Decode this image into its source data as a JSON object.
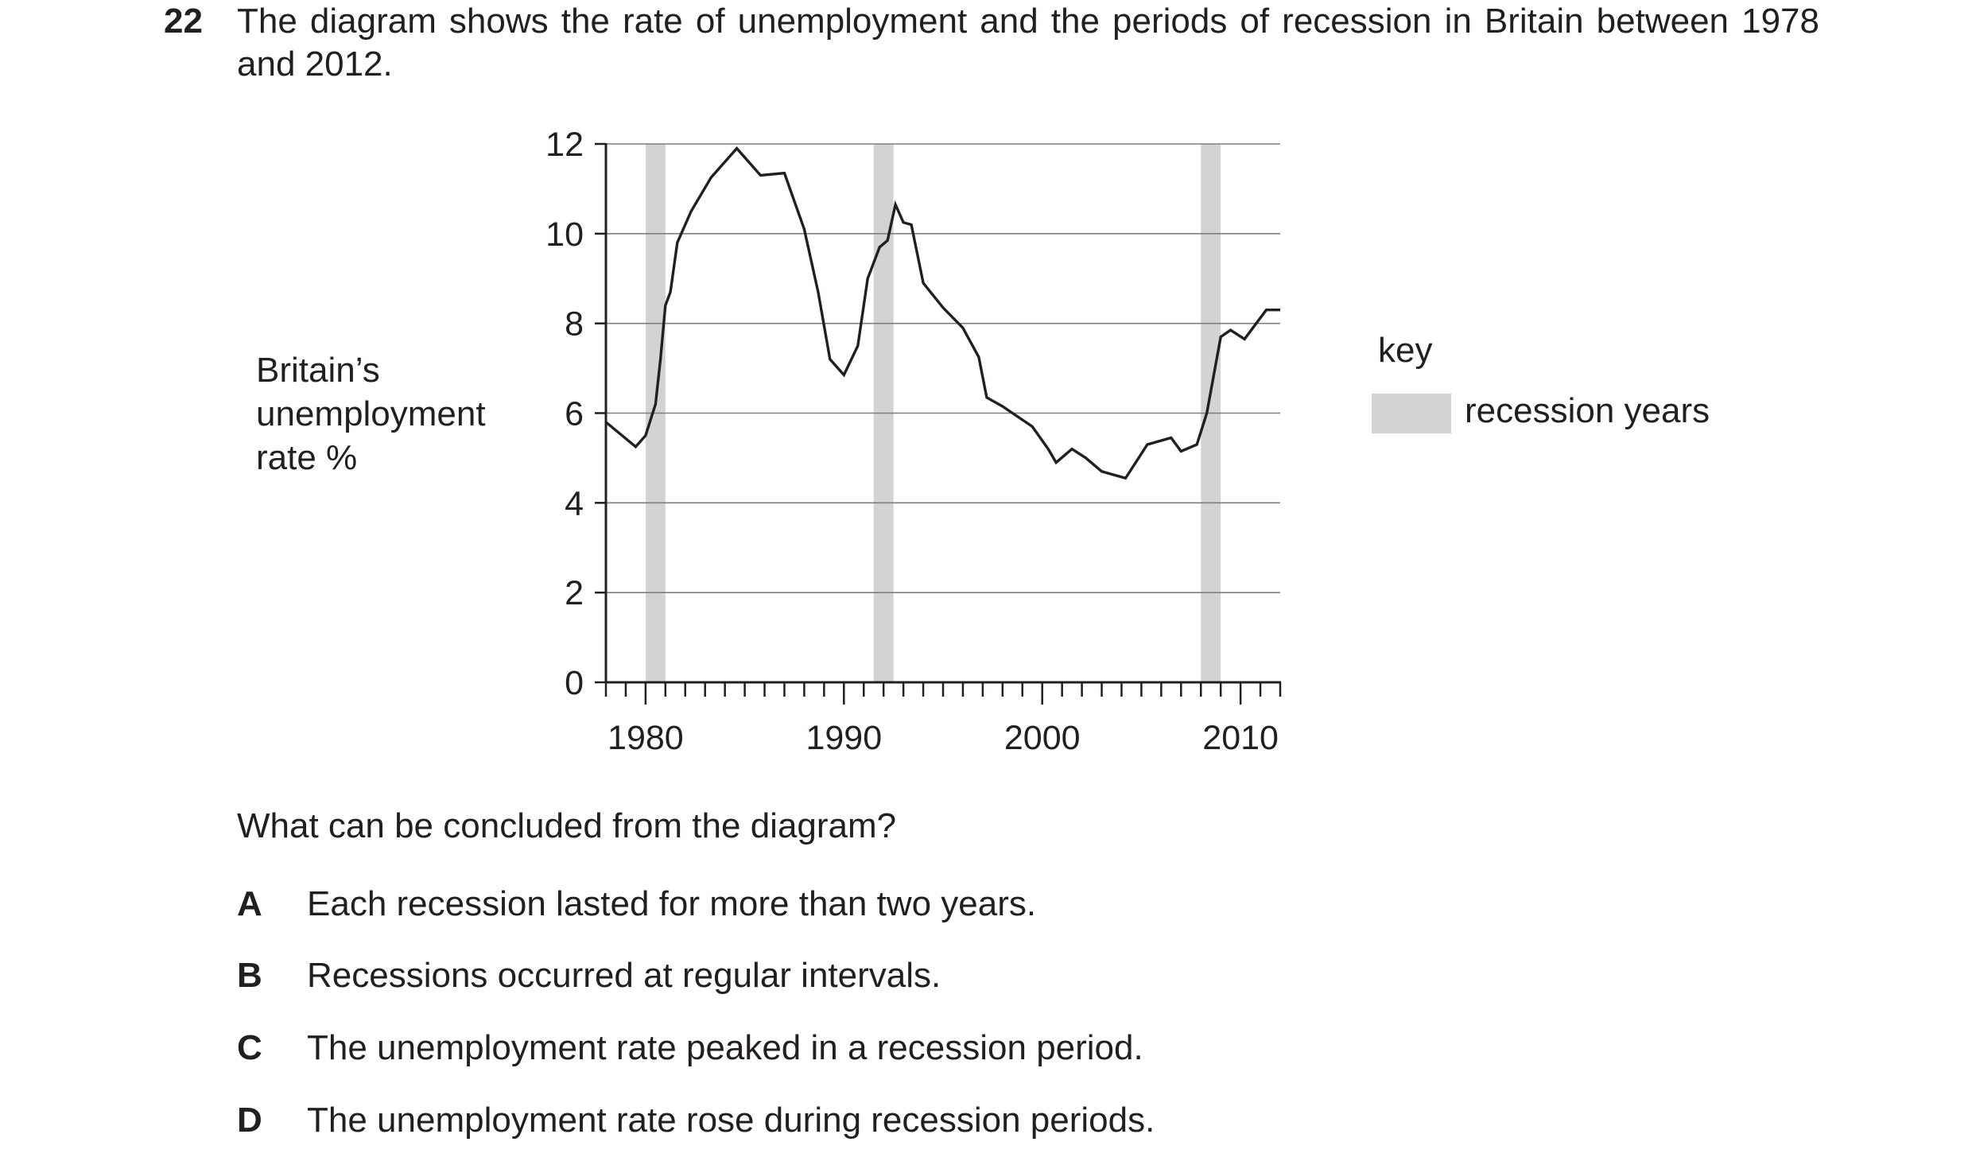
{
  "question": {
    "number": "22",
    "stem": "The diagram shows the rate of unemployment and the periods of recession in Britain between 1978 and 2012.",
    "prompt": "What can be concluded from the diagram?",
    "options": [
      {
        "letter": "A",
        "text": "Each recession lasted for more than two years."
      },
      {
        "letter": "B",
        "text": "Recessions occurred at regular intervals."
      },
      {
        "letter": "C",
        "text": "The unemployment rate peaked in a recession period."
      },
      {
        "letter": "D",
        "text": "The unemployment rate rose during recession periods."
      }
    ]
  },
  "key": {
    "title": "key",
    "label": "recession years",
    "swatch_color": "#d3d3d4"
  },
  "chart_data": {
    "type": "line",
    "ylabel_lines": [
      "Britain’s",
      "unemployment",
      "rate %"
    ],
    "xlabel": "",
    "xlim": [
      1978,
      2012
    ],
    "ylim": [
      0,
      12
    ],
    "x_tick_labels": [
      "1980",
      "1990",
      "2000",
      "2010"
    ],
    "y_tick_labels": [
      "0",
      "2",
      "4",
      "6",
      "8",
      "10",
      "12"
    ],
    "grid": "horizontal",
    "line_color": "#231f20",
    "recession_color": "#d3d3d4",
    "recessions": [
      [
        1980.0,
        1981.0
      ],
      [
        1991.5,
        1992.5
      ],
      [
        2008.0,
        2009.0
      ]
    ],
    "series": [
      {
        "x": [
          1978.0,
          1979.5,
          1980.0,
          1980.5,
          1980.75,
          1981.0,
          1981.25,
          1981.6,
          1982.3,
          1983.3,
          1984.6,
          1985.8,
          1987.0,
          1988.0,
          1988.7,
          1989.3,
          1990.0,
          1990.7,
          1991.2,
          1991.8,
          1992.2,
          1992.6,
          1993.0,
          1993.4,
          1994.0,
          1995.0,
          1996.0,
          1996.8,
          1997.2,
          1998.0,
          1999.5,
          2000.3,
          2000.7,
          2001.5,
          2002.2,
          2003.0,
          2004.2,
          2005.3,
          2006.5,
          2007.0,
          2007.8,
          2008.3,
          2009.0,
          2009.5,
          2010.2,
          2011.3,
          2012.0
        ],
        "y": [
          5.8,
          5.25,
          5.5,
          6.2,
          7.2,
          8.4,
          8.7,
          9.8,
          10.5,
          11.25,
          11.9,
          11.3,
          11.35,
          10.1,
          8.7,
          7.2,
          6.85,
          7.5,
          9.0,
          9.7,
          9.85,
          10.65,
          10.25,
          10.2,
          8.9,
          8.35,
          7.9,
          7.25,
          6.35,
          6.15,
          5.7,
          5.2,
          4.9,
          5.2,
          5.0,
          4.7,
          4.55,
          5.3,
          5.45,
          5.15,
          5.3,
          6.0,
          7.7,
          7.85,
          7.65,
          8.3,
          8.3
        ]
      }
    ]
  }
}
